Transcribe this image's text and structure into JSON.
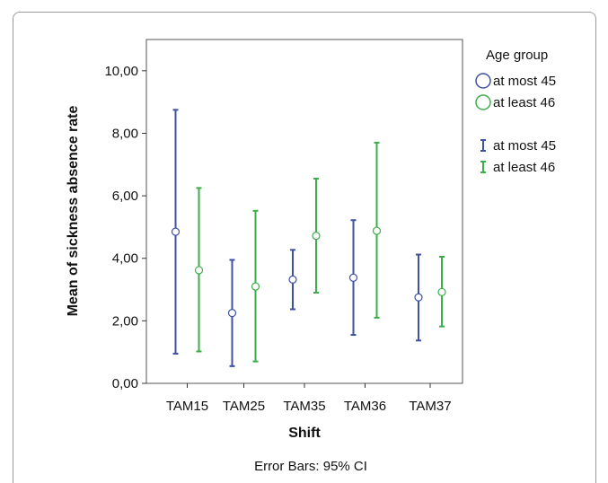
{
  "chart_data": {
    "type": "errorbar",
    "xlabel": "Shift",
    "ylabel": "Mean of sickness absence rate",
    "categories": [
      "TAM15",
      "TAM25",
      "TAM35",
      "TAM36",
      "TAM37"
    ],
    "ylim": [
      0,
      11
    ],
    "yticks": [
      0,
      2,
      4,
      6,
      8,
      10
    ],
    "ytick_labels": [
      "0,00",
      "2,00",
      "4,00",
      "6,00",
      "8,00",
      "10,00"
    ],
    "legend": {
      "title": "Age group",
      "placement": "right",
      "markers": [
        "at most 45",
        "at least 46"
      ],
      "bars": [
        "at most 45",
        "at least 46"
      ]
    },
    "series": [
      {
        "name": "at most 45",
        "color": "#3f51a3",
        "mean": [
          4.85,
          2.25,
          3.32,
          3.38,
          2.75
        ],
        "lower": [
          0.95,
          0.55,
          2.37,
          1.55,
          1.37
        ],
        "upper": [
          8.75,
          3.95,
          4.27,
          5.22,
          4.12
        ]
      },
      {
        "name": "at least 46",
        "color": "#3cae49",
        "mean": [
          3.62,
          3.1,
          4.72,
          4.88,
          2.92
        ],
        "lower": [
          1.02,
          0.7,
          2.9,
          2.1,
          1.82
        ],
        "upper": [
          6.25,
          5.52,
          6.55,
          7.7,
          4.05
        ]
      }
    ],
    "grid": false
  },
  "footnote": "Error Bars: 95% CI"
}
